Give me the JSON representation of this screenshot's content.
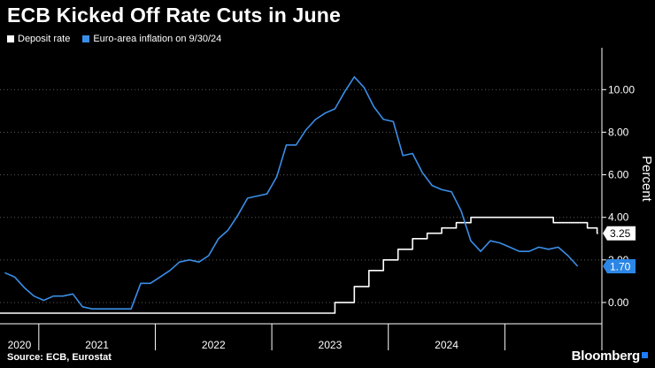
{
  "colors": {
    "background": "#000000",
    "deposit": "#ffffff",
    "inflation": "#3a8ee8",
    "badge_blue": "#2b86e6",
    "axis": "#ffffff"
  },
  "chart_data": {
    "type": "line",
    "title": "ECB Kicked Off Rate Cuts in June",
    "xlabel": "",
    "ylabel": "Percent",
    "ylim": [
      -1,
      11.8
    ],
    "yticks": [
      0,
      2,
      4,
      6,
      8,
      10
    ],
    "ytick_labels": [
      "0.00",
      "2.00",
      "4.00",
      "6.00",
      "8.00",
      "10.00"
    ],
    "xlim": [
      2019.667,
      2024.833
    ],
    "year_ticks": [
      2020,
      2021,
      2022,
      2023,
      2024
    ],
    "year_labels": [
      "2020",
      "2021",
      "2022",
      "2023",
      "2024"
    ],
    "series": [
      {
        "name": "Deposit rate",
        "color": "#ffffff",
        "step": true,
        "end_label": "3.25",
        "points": [
          [
            2019.667,
            -0.5
          ],
          [
            2022.5417,
            -0.5
          ],
          [
            2022.5417,
            0.0
          ],
          [
            2022.7083,
            0.0
          ],
          [
            2022.7083,
            0.75
          ],
          [
            2022.8333,
            0.75
          ],
          [
            2022.8333,
            1.5
          ],
          [
            2022.9583,
            1.5
          ],
          [
            2022.9583,
            2.0
          ],
          [
            2023.0833,
            2.0
          ],
          [
            2023.0833,
            2.5
          ],
          [
            2023.2083,
            2.5
          ],
          [
            2023.2083,
            3.0
          ],
          [
            2023.3333,
            3.0
          ],
          [
            2023.3333,
            3.25
          ],
          [
            2023.4583,
            3.25
          ],
          [
            2023.4583,
            3.5
          ],
          [
            2023.5833,
            3.5
          ],
          [
            2023.5833,
            3.75
          ],
          [
            2023.7083,
            3.75
          ],
          [
            2023.7083,
            4.0
          ],
          [
            2024.4167,
            4.0
          ],
          [
            2024.4167,
            3.75
          ],
          [
            2024.7083,
            3.75
          ],
          [
            2024.7083,
            3.5
          ],
          [
            2024.7917,
            3.5
          ],
          [
            2024.7917,
            3.25
          ],
          [
            2024.8,
            3.25
          ]
        ]
      },
      {
        "name": "Euro-area inflation on 9/30/24",
        "color": "#3a8ee8",
        "step": false,
        "end_label": "1.70",
        "points": [
          [
            2019.708,
            1.4
          ],
          [
            2019.792,
            1.2
          ],
          [
            2019.875,
            0.7
          ],
          [
            2019.958,
            0.3
          ],
          [
            2020.042,
            0.1
          ],
          [
            2020.125,
            0.3
          ],
          [
            2020.208,
            0.3
          ],
          [
            2020.292,
            0.4
          ],
          [
            2020.375,
            -0.2
          ],
          [
            2020.458,
            -0.3
          ],
          [
            2020.542,
            -0.3
          ],
          [
            2020.625,
            -0.3
          ],
          [
            2020.708,
            -0.3
          ],
          [
            2020.792,
            -0.3
          ],
          [
            2020.875,
            0.9
          ],
          [
            2020.958,
            0.9
          ],
          [
            2021.042,
            1.2
          ],
          [
            2021.125,
            1.5
          ],
          [
            2021.208,
            1.9
          ],
          [
            2021.292,
            2.0
          ],
          [
            2021.375,
            1.9
          ],
          [
            2021.458,
            2.2
          ],
          [
            2021.542,
            3.0
          ],
          [
            2021.625,
            3.4
          ],
          [
            2021.708,
            4.1
          ],
          [
            2021.792,
            4.9
          ],
          [
            2021.875,
            5.0
          ],
          [
            2021.958,
            5.1
          ],
          [
            2022.042,
            5.9
          ],
          [
            2022.125,
            7.4
          ],
          [
            2022.208,
            7.4
          ],
          [
            2022.292,
            8.1
          ],
          [
            2022.375,
            8.6
          ],
          [
            2022.458,
            8.9
          ],
          [
            2022.542,
            9.1
          ],
          [
            2022.625,
            9.9
          ],
          [
            2022.708,
            10.6
          ],
          [
            2022.792,
            10.1
          ],
          [
            2022.875,
            9.2
          ],
          [
            2022.958,
            8.6
          ],
          [
            2023.042,
            8.5
          ],
          [
            2023.125,
            6.9
          ],
          [
            2023.208,
            7.0
          ],
          [
            2023.292,
            6.1
          ],
          [
            2023.375,
            5.5
          ],
          [
            2023.458,
            5.3
          ],
          [
            2023.542,
            5.2
          ],
          [
            2023.625,
            4.3
          ],
          [
            2023.708,
            2.9
          ],
          [
            2023.792,
            2.4
          ],
          [
            2023.875,
            2.9
          ],
          [
            2023.958,
            2.8
          ],
          [
            2024.042,
            2.6
          ],
          [
            2024.125,
            2.4
          ],
          [
            2024.208,
            2.4
          ],
          [
            2024.292,
            2.6
          ],
          [
            2024.375,
            2.5
          ],
          [
            2024.458,
            2.6
          ],
          [
            2024.542,
            2.2
          ],
          [
            2024.625,
            1.7
          ]
        ]
      }
    ]
  },
  "legend": {
    "items": [
      "Deposit rate",
      "Euro-area inflation on 9/30/24"
    ]
  },
  "footer": {
    "source": "Source: ECB, Eurostat",
    "brand": "Bloomberg"
  }
}
